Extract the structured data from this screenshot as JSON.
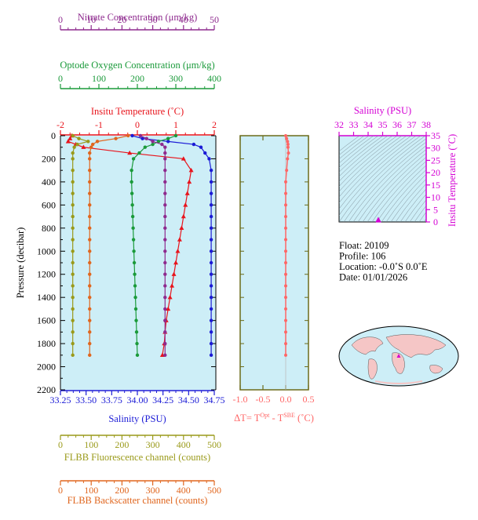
{
  "colors": {
    "nitrate": "#8e2a8e",
    "oxygen": "#1a9a3a",
    "temperature": "#e8141c",
    "salinity": "#1b1bd6",
    "fluorescence": "#9a9a1a",
    "backscatter": "#e0661e",
    "delta_t": "#ff6666",
    "ts_axis": "#d400d4",
    "plot_bg": "#cdeef7"
  },
  "axes": {
    "nitrate": {
      "label": "Nitrate Concentration (μm/kg)",
      "ticks": [
        "0",
        "10",
        "20",
        "30",
        "40",
        "50"
      ],
      "range": [
        0,
        50
      ]
    },
    "oxygen": {
      "label": "Optode Oxygen Concentration (μm/kg)",
      "ticks": [
        "0",
        "100",
        "200",
        "300",
        "400"
      ],
      "range": [
        0,
        400
      ]
    },
    "temperature": {
      "label": "Insitu Temperature (˚C)",
      "ticks": [
        "-2",
        "-1",
        "0",
        "1",
        "2"
      ],
      "range": [
        -2,
        2
      ]
    },
    "pressure": {
      "label": "Pressure (decibar)",
      "ticks": [
        "0",
        "200",
        "400",
        "600",
        "800",
        "1000",
        "1200",
        "1400",
        "1600",
        "1800",
        "2000",
        "2200"
      ],
      "range": [
        0,
        2200
      ]
    },
    "salinity": {
      "label": "Salinity (PSU)",
      "ticks": [
        "33.25",
        "33.50",
        "33.75",
        "34.00",
        "34.25",
        "34.50",
        "34.75"
      ],
      "range": [
        33.25,
        34.75
      ]
    },
    "fluorescence": {
      "label": "FLBB Fluorescence channel (counts)",
      "ticks": [
        "0",
        "100",
        "200",
        "300",
        "400",
        "500"
      ],
      "range": [
        0,
        500
      ]
    },
    "backscatter": {
      "label": "FLBB Backscatter channel (counts)",
      "ticks": [
        "0",
        "100",
        "200",
        "300",
        "400",
        "500"
      ],
      "range": [
        0,
        500
      ]
    },
    "delta_t": {
      "label_main": "ΔT= T",
      "label_sup1": "Opt",
      "label_mid": " - T",
      "label_sup2": "SBE",
      "label_end": " (˚C)",
      "ticks": [
        "-1.0",
        "-0.5",
        "0.0",
        "0.5"
      ],
      "range": [
        -1.0,
        0.5
      ]
    },
    "ts_salinity": {
      "label": "Salinity (PSU)",
      "ticks": [
        "32",
        "33",
        "34",
        "35",
        "36",
        "37",
        "38"
      ],
      "range": [
        32,
        38
      ]
    },
    "ts_temperature": {
      "label": "Insitu Temperature (˚C)",
      "ticks": [
        "0",
        "5",
        "10",
        "15",
        "20",
        "25",
        "30",
        "35"
      ],
      "range": [
        0,
        35
      ]
    }
  },
  "info": {
    "float": "Float:  20109",
    "profile": "Profile:  106",
    "location": "Location:  -0.0˚S   0.0˚E",
    "date": "Date:  01/01/2026"
  },
  "chart_data": [
    {
      "type": "line",
      "name": "profile",
      "x_axes": [
        "temperature",
        "salinity",
        "oxygen",
        "nitrate",
        "fluorescence",
        "backscatter"
      ],
      "y_axis": "pressure",
      "series": [
        {
          "axis": "temperature",
          "marker": "triangle",
          "pressure": [
            0,
            25,
            50,
            75,
            100,
            150,
            200,
            300,
            400,
            500,
            600,
            700,
            800,
            900,
            1000,
            1100,
            1200,
            1300,
            1400,
            1500,
            1600,
            1700,
            1800,
            1900
          ],
          "values": [
            -1.7,
            -1.75,
            -1.8,
            -1.6,
            -1.4,
            -0.2,
            1.2,
            1.4,
            1.35,
            1.3,
            1.25,
            1.2,
            1.15,
            1.1,
            1.05,
            1.0,
            0.95,
            0.9,
            0.85,
            0.8,
            0.75,
            0.72,
            0.7,
            0.65
          ]
        },
        {
          "axis": "salinity",
          "marker": "circle",
          "pressure": [
            0,
            25,
            50,
            75,
            100,
            150,
            200,
            300,
            400,
            500,
            600,
            700,
            800,
            900,
            1000,
            1100,
            1200,
            1300,
            1400,
            1500,
            1600,
            1700,
            1800,
            1900
          ],
          "values": [
            33.95,
            34.05,
            34.3,
            34.55,
            34.62,
            34.66,
            34.7,
            34.72,
            34.72,
            34.72,
            34.72,
            34.72,
            34.72,
            34.72,
            34.72,
            34.72,
            34.72,
            34.72,
            34.72,
            34.72,
            34.72,
            34.72,
            34.72,
            34.72
          ]
        },
        {
          "axis": "oxygen",
          "marker": "circle",
          "pressure": [
            0,
            25,
            50,
            75,
            100,
            150,
            200,
            300,
            400,
            500,
            600,
            700,
            800,
            900,
            1000,
            1100,
            1200,
            1300,
            1400,
            1500,
            1600,
            1700,
            1800,
            1900
          ],
          "values": [
            300,
            280,
            255,
            240,
            220,
            205,
            190,
            185,
            185,
            186,
            187,
            188,
            189,
            190,
            191,
            192,
            193,
            194,
            195,
            196,
            197,
            198,
            199,
            200
          ]
        },
        {
          "axis": "nitrate",
          "marker": "circle",
          "pressure": [
            0,
            25,
            50,
            75,
            100,
            150,
            200,
            300,
            400,
            500,
            600,
            700,
            800,
            900,
            1000,
            1100,
            1200,
            1300,
            1400,
            1500,
            1600,
            1700,
            1800,
            1900
          ],
          "values": [
            26,
            28,
            30,
            33,
            34,
            34,
            34,
            34,
            34,
            34,
            34,
            34,
            34,
            34,
            34,
            34,
            34,
            34,
            34,
            34,
            34,
            34,
            34,
            34
          ]
        },
        {
          "axis": "fluorescence",
          "marker": "circle",
          "pressure": [
            0,
            25,
            50,
            75,
            100,
            150,
            200,
            300,
            400,
            500,
            600,
            700,
            800,
            900,
            1000,
            1100,
            1200,
            1300,
            1400,
            1500,
            1600,
            1700,
            1800,
            1900
          ],
          "values": [
            40,
            60,
            90,
            55,
            45,
            40,
            40,
            40,
            40,
            40,
            40,
            40,
            40,
            40,
            40,
            40,
            40,
            40,
            40,
            40,
            40,
            40,
            40,
            40
          ]
        },
        {
          "axis": "backscatter",
          "marker": "circle",
          "pressure": [
            0,
            25,
            50,
            75,
            100,
            150,
            200,
            300,
            400,
            500,
            600,
            700,
            800,
            900,
            1000,
            1100,
            1200,
            1300,
            1400,
            1500,
            1600,
            1700,
            1800,
            1900
          ],
          "values": [
            220,
            180,
            120,
            105,
            100,
            95,
            95,
            95,
            95,
            95,
            95,
            95,
            95,
            95,
            95,
            95,
            95,
            95,
            95,
            95,
            95,
            95,
            95,
            95
          ]
        }
      ]
    },
    {
      "type": "line",
      "name": "delta-t",
      "x_axis": "delta_t",
      "y_axis": "pressure",
      "series": [
        {
          "pressure": [
            0,
            25,
            50,
            75,
            100,
            150,
            200,
            300,
            400,
            500,
            600,
            700,
            800,
            900,
            1000,
            1100,
            1200,
            1300,
            1400,
            1500,
            1600,
            1700,
            1800,
            1900
          ],
          "values": [
            0.0,
            0.02,
            0.04,
            0.05,
            0.05,
            0.06,
            0.04,
            0.02,
            0.0,
            0.0,
            0.0,
            0.0,
            0.0,
            0.0,
            0.0,
            0.0,
            0.0,
            0.0,
            0.0,
            0.0,
            0.0,
            0.0,
            0.0,
            0.0
          ]
        }
      ]
    },
    {
      "type": "scatter",
      "name": "ts-diagram",
      "x_axis": "ts_salinity",
      "y_axis": "ts_temperature",
      "points": [
        {
          "salinity": 34.7,
          "temperature": 0.8
        },
        {
          "salinity": 34.72,
          "temperature": 0.6
        }
      ]
    },
    {
      "type": "map",
      "name": "float-location",
      "marker": {
        "lat": 0.0,
        "lon": 0.0
      }
    }
  ]
}
